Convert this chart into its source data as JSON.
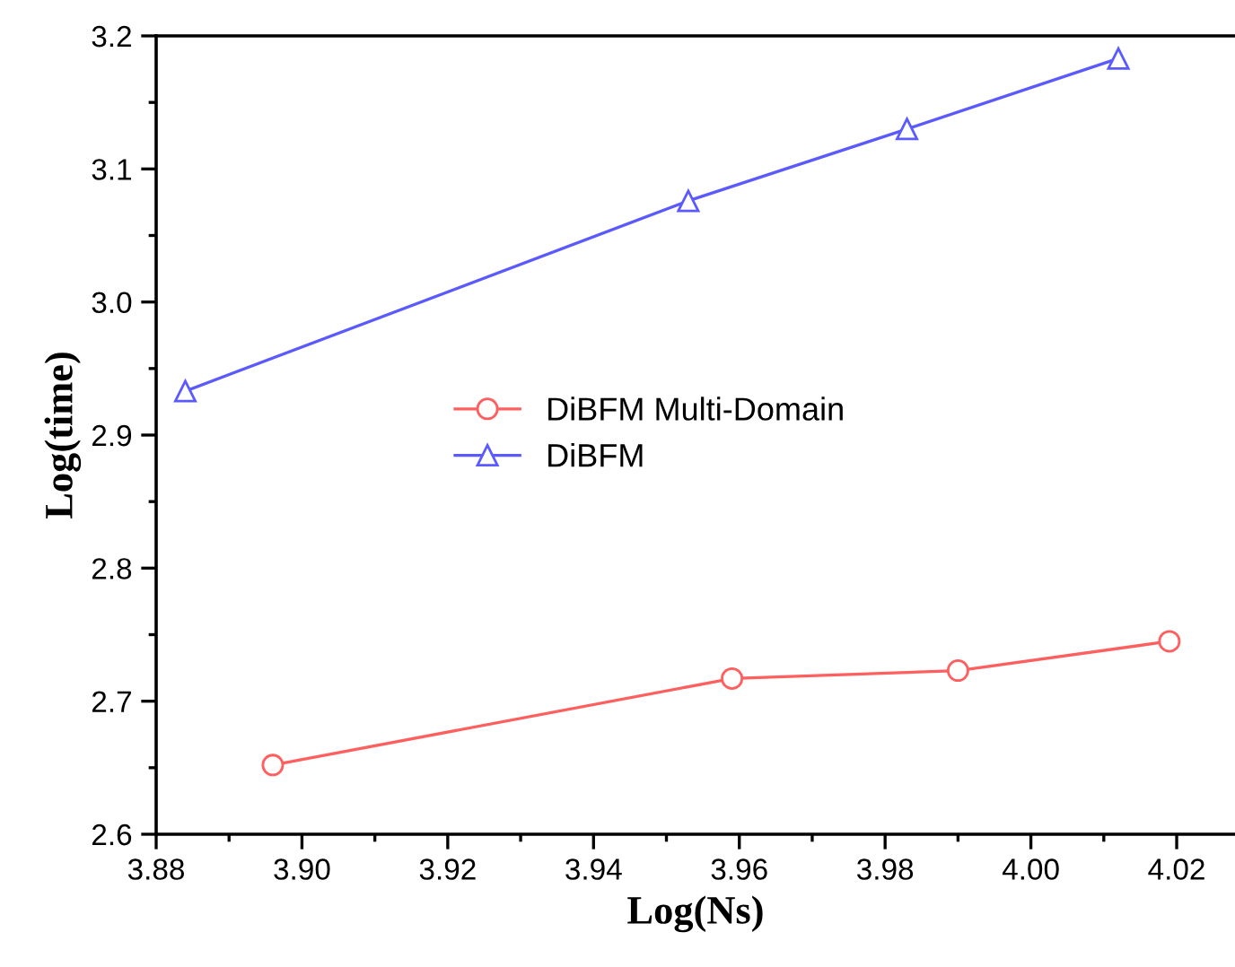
{
  "chart_data": {
    "type": "line",
    "xlabel": "Log(Ns)",
    "ylabel": "Log(time)",
    "xlim": [
      3.88,
      4.028
    ],
    "xticks": [
      {
        "value": 3.88,
        "label": "3.88"
      },
      {
        "value": 3.9,
        "label": "3.90"
      },
      {
        "value": 3.92,
        "label": "3.92"
      },
      {
        "value": 3.94,
        "label": "3.94"
      },
      {
        "value": 3.96,
        "label": "3.96"
      },
      {
        "value": 3.98,
        "label": "3.98"
      },
      {
        "value": 4.0,
        "label": "4.00"
      },
      {
        "value": 4.02,
        "label": "4.02"
      }
    ],
    "ylim": [
      2.6,
      3.2
    ],
    "yticks": [
      {
        "value": 2.6,
        "label": "2.6"
      },
      {
        "value": 2.7,
        "label": "2.7"
      },
      {
        "value": 2.8,
        "label": "2.8"
      },
      {
        "value": 2.9,
        "label": "2.9"
      },
      {
        "value": 3.0,
        "label": "3.0"
      },
      {
        "value": 3.1,
        "label": "3.1"
      },
      {
        "value": 3.2,
        "label": "3.2"
      }
    ],
    "grid": false,
    "legend": "center left",
    "series": [
      {
        "name": "DiBFM Multi-Domain",
        "color": "#ff5f5f",
        "marker": "circle",
        "x": [
          3.896,
          3.959,
          3.99,
          4.019
        ],
        "values": [
          2.652,
          2.717,
          2.723,
          2.745
        ]
      },
      {
        "name": "DiBFM",
        "color": "#5a5aff",
        "marker": "triangle",
        "x": [
          3.884,
          3.953,
          3.983,
          4.012
        ],
        "values": [
          2.933,
          3.076,
          3.13,
          3.183
        ]
      }
    ]
  }
}
